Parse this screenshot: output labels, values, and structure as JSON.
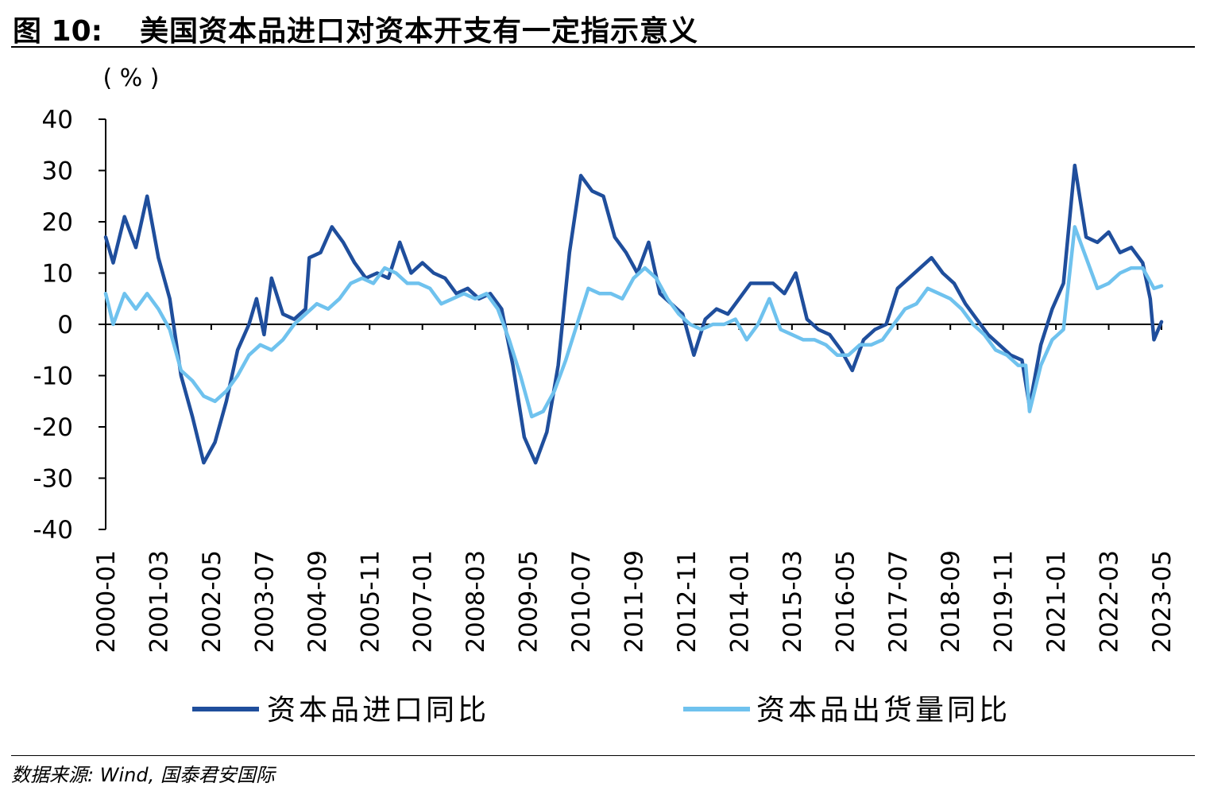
{
  "figure": {
    "label": "图 10:",
    "title": "美国资本品进口对资本开支有一定指示意义",
    "source_label": "数据来源:",
    "source_text": "Wind, 国泰君安国际"
  },
  "chart_data": {
    "type": "line",
    "title": "美国资本品进口对资本开支有一定指示意义",
    "unit_label": "( % )",
    "ylim": [
      -40,
      40
    ],
    "yticks": [
      40,
      30,
      20,
      10,
      0,
      -10,
      -20,
      -30,
      -40
    ],
    "x_start": "2000-01",
    "x_end": "2023-05",
    "xtick_labels": [
      "2000-01",
      "2001-03",
      "2002-05",
      "2003-07",
      "2004-09",
      "2005-11",
      "2007-01",
      "2008-03",
      "2009-05",
      "2010-07",
      "2011-09",
      "2012-11",
      "2014-01",
      "2015-03",
      "2016-05",
      "2017-07",
      "2018-09",
      "2019-11",
      "2021-01",
      "2022-03",
      "2023-05"
    ],
    "legend_position": "bottom",
    "series": [
      {
        "name": "资本品进口同比",
        "color": "#1f4e9c",
        "points": [
          [
            "2000-01",
            17
          ],
          [
            "2000-03",
            12
          ],
          [
            "2000-06",
            21
          ],
          [
            "2000-09",
            15
          ],
          [
            "2000-12",
            25
          ],
          [
            "2001-03",
            13
          ],
          [
            "2001-06",
            5
          ],
          [
            "2001-09",
            -10
          ],
          [
            "2001-12",
            -18
          ],
          [
            "2002-03",
            -27
          ],
          [
            "2002-06",
            -23
          ],
          [
            "2002-09",
            -15
          ],
          [
            "2002-12",
            -5
          ],
          [
            "2003-03",
            0
          ],
          [
            "2003-05",
            5
          ],
          [
            "2003-07",
            -2
          ],
          [
            "2003-09",
            9
          ],
          [
            "2003-12",
            2
          ],
          [
            "2004-03",
            1
          ],
          [
            "2004-06",
            3
          ],
          [
            "2004-07",
            13
          ],
          [
            "2004-10",
            14
          ],
          [
            "2005-01",
            19
          ],
          [
            "2005-04",
            16
          ],
          [
            "2005-07",
            12
          ],
          [
            "2005-10",
            9
          ],
          [
            "2006-01",
            10
          ],
          [
            "2006-04",
            9
          ],
          [
            "2006-07",
            16
          ],
          [
            "2006-10",
            10
          ],
          [
            "2007-01",
            12
          ],
          [
            "2007-04",
            10
          ],
          [
            "2007-07",
            9
          ],
          [
            "2007-10",
            6
          ],
          [
            "2008-01",
            7
          ],
          [
            "2008-04",
            5
          ],
          [
            "2008-07",
            6
          ],
          [
            "2008-10",
            3
          ],
          [
            "2009-01",
            -8
          ],
          [
            "2009-04",
            -22
          ],
          [
            "2009-07",
            -27
          ],
          [
            "2009-10",
            -21
          ],
          [
            "2010-01",
            -8
          ],
          [
            "2010-04",
            14
          ],
          [
            "2010-07",
            29
          ],
          [
            "2010-10",
            26
          ],
          [
            "2011-01",
            25
          ],
          [
            "2011-04",
            17
          ],
          [
            "2011-07",
            14
          ],
          [
            "2011-10",
            10
          ],
          [
            "2012-01",
            16
          ],
          [
            "2012-04",
            6
          ],
          [
            "2012-07",
            4
          ],
          [
            "2012-10",
            2
          ],
          [
            "2013-01",
            -6
          ],
          [
            "2013-04",
            1
          ],
          [
            "2013-07",
            3
          ],
          [
            "2013-10",
            2
          ],
          [
            "2014-01",
            5
          ],
          [
            "2014-04",
            8
          ],
          [
            "2014-07",
            8
          ],
          [
            "2014-10",
            8
          ],
          [
            "2015-01",
            6
          ],
          [
            "2015-04",
            10
          ],
          [
            "2015-07",
            1
          ],
          [
            "2015-10",
            -1
          ],
          [
            "2016-01",
            -2
          ],
          [
            "2016-04",
            -5
          ],
          [
            "2016-07",
            -9
          ],
          [
            "2016-10",
            -3
          ],
          [
            "2017-01",
            -1
          ],
          [
            "2017-04",
            0
          ],
          [
            "2017-07",
            7
          ],
          [
            "2017-10",
            9
          ],
          [
            "2018-01",
            11
          ],
          [
            "2018-04",
            13
          ],
          [
            "2018-07",
            10
          ],
          [
            "2018-10",
            8
          ],
          [
            "2019-01",
            4
          ],
          [
            "2019-04",
            1
          ],
          [
            "2019-07",
            -2
          ],
          [
            "2019-10",
            -4
          ],
          [
            "2020-01",
            -6
          ],
          [
            "2020-04",
            -7
          ],
          [
            "2020-06",
            -16
          ],
          [
            "2020-09",
            -4
          ],
          [
            "2020-12",
            3
          ],
          [
            "2021-03",
            8
          ],
          [
            "2021-06",
            31
          ],
          [
            "2021-09",
            17
          ],
          [
            "2021-12",
            16
          ],
          [
            "2022-03",
            18
          ],
          [
            "2022-06",
            14
          ],
          [
            "2022-09",
            15
          ],
          [
            "2022-12",
            12
          ],
          [
            "2023-02",
            5
          ],
          [
            "2023-03",
            -3
          ],
          [
            "2023-05",
            0.5
          ]
        ]
      },
      {
        "name": "资本品出货量同比",
        "color": "#6fc2ee",
        "points": [
          [
            "2000-01",
            6
          ],
          [
            "2000-03",
            0
          ],
          [
            "2000-06",
            6
          ],
          [
            "2000-09",
            3
          ],
          [
            "2000-12",
            6
          ],
          [
            "2001-03",
            3
          ],
          [
            "2001-06",
            -1
          ],
          [
            "2001-09",
            -9
          ],
          [
            "2001-12",
            -11
          ],
          [
            "2002-03",
            -14
          ],
          [
            "2002-06",
            -15
          ],
          [
            "2002-09",
            -13
          ],
          [
            "2002-12",
            -10
          ],
          [
            "2003-03",
            -6
          ],
          [
            "2003-06",
            -4
          ],
          [
            "2003-09",
            -5
          ],
          [
            "2003-12",
            -3
          ],
          [
            "2004-03",
            0
          ],
          [
            "2004-06",
            2
          ],
          [
            "2004-09",
            4
          ],
          [
            "2004-12",
            3
          ],
          [
            "2005-03",
            5
          ],
          [
            "2005-06",
            8
          ],
          [
            "2005-09",
            9
          ],
          [
            "2005-12",
            8
          ],
          [
            "2006-03",
            11
          ],
          [
            "2006-06",
            10
          ],
          [
            "2006-09",
            8
          ],
          [
            "2006-12",
            8
          ],
          [
            "2007-03",
            7
          ],
          [
            "2007-06",
            4
          ],
          [
            "2007-09",
            5
          ],
          [
            "2007-12",
            6
          ],
          [
            "2008-03",
            5
          ],
          [
            "2008-06",
            6
          ],
          [
            "2008-09",
            3
          ],
          [
            "2008-12",
            -3
          ],
          [
            "2009-03",
            -10
          ],
          [
            "2009-06",
            -18
          ],
          [
            "2009-09",
            -17
          ],
          [
            "2009-12",
            -13
          ],
          [
            "2010-03",
            -7
          ],
          [
            "2010-06",
            0
          ],
          [
            "2010-09",
            7
          ],
          [
            "2010-12",
            6
          ],
          [
            "2011-03",
            6
          ],
          [
            "2011-06",
            5
          ],
          [
            "2011-09",
            9
          ],
          [
            "2011-12",
            11
          ],
          [
            "2012-03",
            9
          ],
          [
            "2012-06",
            5
          ],
          [
            "2012-09",
            2
          ],
          [
            "2012-12",
            0
          ],
          [
            "2013-03",
            -1
          ],
          [
            "2013-06",
            0
          ],
          [
            "2013-09",
            0
          ],
          [
            "2013-12",
            1
          ],
          [
            "2014-03",
            -3
          ],
          [
            "2014-06",
            0
          ],
          [
            "2014-09",
            5
          ],
          [
            "2014-12",
            -1
          ],
          [
            "2015-03",
            -2
          ],
          [
            "2015-06",
            -3
          ],
          [
            "2015-09",
            -3
          ],
          [
            "2015-12",
            -4
          ],
          [
            "2016-03",
            -6
          ],
          [
            "2016-06",
            -6
          ],
          [
            "2016-09",
            -4
          ],
          [
            "2016-12",
            -4
          ],
          [
            "2017-03",
            -3
          ],
          [
            "2017-06",
            0
          ],
          [
            "2017-09",
            3
          ],
          [
            "2017-12",
            4
          ],
          [
            "2018-03",
            7
          ],
          [
            "2018-06",
            6
          ],
          [
            "2018-09",
            5
          ],
          [
            "2018-12",
            3
          ],
          [
            "2019-03",
            0
          ],
          [
            "2019-06",
            -2
          ],
          [
            "2019-09",
            -5
          ],
          [
            "2019-12",
            -6
          ],
          [
            "2020-03",
            -8
          ],
          [
            "2020-05",
            -8
          ],
          [
            "2020-06",
            -17
          ],
          [
            "2020-09",
            -8
          ],
          [
            "2020-12",
            -3
          ],
          [
            "2021-03",
            -1
          ],
          [
            "2021-06",
            19
          ],
          [
            "2021-09",
            13
          ],
          [
            "2021-12",
            7
          ],
          [
            "2022-03",
            8
          ],
          [
            "2022-06",
            10
          ],
          [
            "2022-09",
            11
          ],
          [
            "2022-12",
            11
          ],
          [
            "2023-03",
            7
          ],
          [
            "2023-05",
            7.5
          ]
        ]
      }
    ]
  }
}
